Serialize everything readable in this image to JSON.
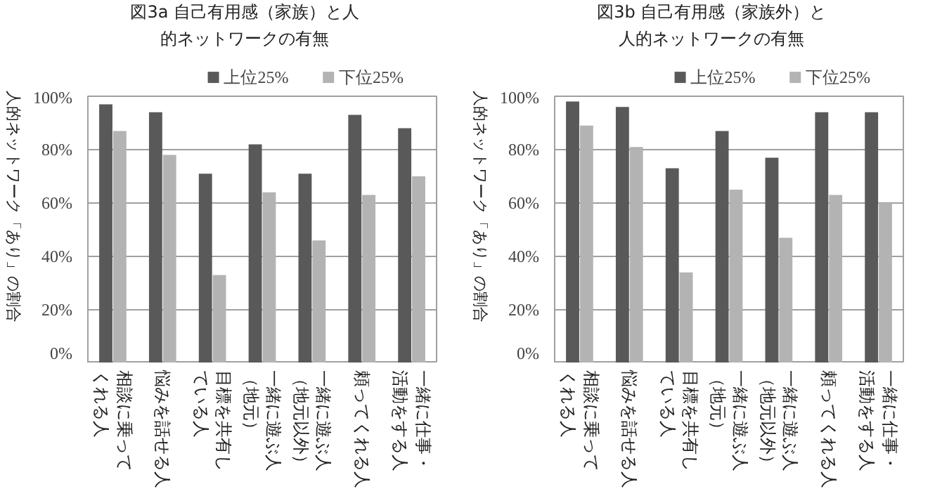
{
  "chart_data": [
    {
      "type": "bar",
      "title": "図3a 自己有用感（家族）と人的ネットワークの有無",
      "ylabel": "人的ネットワーク「あり」の割合",
      "categories": [
        "相談に乗ってくれる人",
        "悩みを話せる人",
        "目標を共有している人",
        "一緒に遊ぶ人（地元）",
        "一緒に遊ぶ人（地元以外）",
        "頼ってくれる人",
        "一緒に仕事・活動をする人"
      ],
      "series": [
        {
          "name": "上位25%",
          "color": "#595959",
          "values": [
            97,
            94,
            71,
            82,
            71,
            93,
            88
          ]
        },
        {
          "name": "下位25%",
          "color": "#b3b3b3",
          "values": [
            87,
            78,
            33,
            64,
            46,
            63,
            70
          ]
        }
      ],
      "ylim": [
        0,
        100
      ],
      "yticks": [
        {
          "value": 0,
          "label": "0%"
        },
        {
          "value": 20,
          "label": "20%"
        },
        {
          "value": 40,
          "label": "40%"
        },
        {
          "value": 60,
          "label": "60%"
        },
        {
          "value": 80,
          "label": "80%"
        },
        {
          "value": 100,
          "label": "100%"
        }
      ],
      "grid": "y",
      "legend": "top right"
    },
    {
      "type": "bar",
      "title": "図3b 自己有用感（家族外）と人的ネットワークの有無",
      "ylabel": "人的ネットワーク「あり」の割合",
      "categories": [
        "相談に乗ってくれる人",
        "悩みを話せる人",
        "目標を共有している人",
        "一緒に遊ぶ人（地元）",
        "一緒に遊ぶ人（地元以外）",
        "頼ってくれる人",
        "一緒に仕事・活動をする人"
      ],
      "series": [
        {
          "name": "上位25%",
          "color": "#595959",
          "values": [
            98,
            96,
            73,
            87,
            77,
            94,
            94
          ]
        },
        {
          "name": "下位25%",
          "color": "#b3b3b3",
          "values": [
            89,
            81,
            34,
            65,
            47,
            63,
            60
          ]
        }
      ],
      "ylim": [
        0,
        100
      ],
      "yticks": [
        {
          "value": 0,
          "label": "0%"
        },
        {
          "value": 20,
          "label": "20%"
        },
        {
          "value": 40,
          "label": "40%"
        },
        {
          "value": 60,
          "label": "60%"
        },
        {
          "value": 80,
          "label": "80%"
        },
        {
          "value": 100,
          "label": "100%"
        }
      ],
      "grid": "y",
      "legend": "top right"
    }
  ]
}
